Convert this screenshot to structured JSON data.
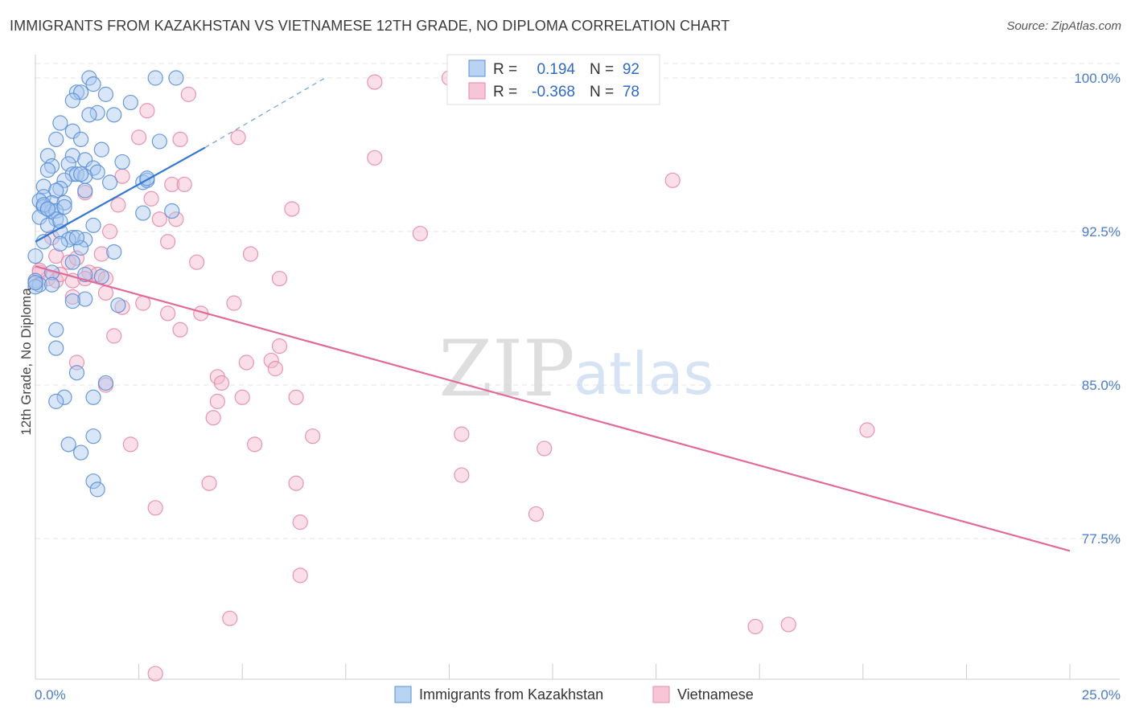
{
  "title": "IMMIGRANTS FROM KAZAKHSTAN VS VIETNAMESE 12TH GRADE, NO DIPLOMA CORRELATION CHART",
  "source": "Source: ZipAtlas.com",
  "colors": {
    "blue_fill": "#a8c8f0",
    "blue_stroke": "#5b8fd6",
    "blue_line": "#3476d2",
    "pink_fill": "#f5b8cc",
    "pink_stroke": "#e58aa8",
    "pink_line": "#e06a98",
    "tick_color": "#4a7cc7",
    "grid": "#e4e4e4"
  },
  "legend_top": {
    "rows": [
      {
        "r_label": "R =",
        "r_value": "0.194",
        "n_label": "N =",
        "n_value": "92"
      },
      {
        "r_label": "R =",
        "r_value": "-0.368",
        "n_label": "N =",
        "n_value": "78"
      }
    ]
  },
  "legend_bottom": {
    "series1": "Immigrants from Kazakhstan",
    "series2": "Vietnamese"
  },
  "watermark": {
    "zip": "ZIP",
    "atlas": "atlas"
  },
  "chart_data": {
    "type": "scatter",
    "title": "IMMIGRANTS FROM KAZAKHSTAN VS VIETNAMESE 12TH GRADE, NO DIPLOMA CORRELATION CHART",
    "xlabel": "",
    "ylabel": "12th Grade, No Diploma",
    "xlim": [
      0,
      25
    ],
    "ylim": [
      70.8,
      101.5
    ],
    "x_tick_labels": [
      {
        "value": 0,
        "label": "0.0%"
      },
      {
        "value": 25,
        "label": "25.0%"
      }
    ],
    "y_tick_labels": [
      {
        "value": 100,
        "label": "100.0%"
      },
      {
        "value": 92.5,
        "label": "92.5%"
      },
      {
        "value": 85,
        "label": "85.0%"
      },
      {
        "value": 77.5,
        "label": "77.5%"
      }
    ],
    "series": [
      {
        "name": "Immigrants from Kazakhstan",
        "color": "blue",
        "r": 0.194,
        "n": 92,
        "trend": {
          "x0": 0,
          "y0": 92.0,
          "x1": 4.1,
          "y1": 96.6,
          "dash_to_x": 7.0,
          "dash_to_y": 100.0
        },
        "points": [
          [
            1.3,
            100.0
          ],
          [
            1.4,
            99.7
          ],
          [
            2.9,
            100.0
          ],
          [
            3.4,
            100.0
          ],
          [
            1.0,
            99.3
          ],
          [
            1.1,
            99.3
          ],
          [
            1.7,
            99.2
          ],
          [
            0.9,
            98.9
          ],
          [
            2.3,
            98.8
          ],
          [
            1.5,
            98.3
          ],
          [
            1.3,
            98.2
          ],
          [
            0.6,
            97.8
          ],
          [
            1.9,
            98.2
          ],
          [
            0.9,
            97.4
          ],
          [
            0.5,
            97.0
          ],
          [
            1.1,
            97.0
          ],
          [
            3.0,
            96.9
          ],
          [
            1.6,
            96.5
          ],
          [
            0.3,
            96.2
          ],
          [
            0.9,
            96.2
          ],
          [
            1.2,
            96.0
          ],
          [
            2.1,
            95.9
          ],
          [
            0.8,
            95.8
          ],
          [
            0.4,
            95.7
          ],
          [
            1.4,
            95.6
          ],
          [
            0.3,
            95.5
          ],
          [
            1.5,
            95.4
          ],
          [
            0.9,
            95.3
          ],
          [
            1.0,
            95.3
          ],
          [
            1.2,
            95.2
          ],
          [
            0.7,
            95.0
          ],
          [
            1.8,
            94.9
          ],
          [
            2.6,
            94.9
          ],
          [
            2.7,
            95.0
          ],
          [
            0.2,
            94.7
          ],
          [
            0.6,
            94.6
          ],
          [
            0.5,
            94.5
          ],
          [
            1.2,
            94.5
          ],
          [
            0.2,
            94.2
          ],
          [
            0.1,
            94.0
          ],
          [
            0.4,
            93.9
          ],
          [
            0.7,
            93.9
          ],
          [
            0.2,
            93.7
          ],
          [
            0.3,
            93.6
          ],
          [
            0.4,
            93.5
          ],
          [
            0.5,
            93.5
          ],
          [
            3.3,
            93.5
          ],
          [
            2.6,
            93.4
          ],
          [
            0.1,
            93.2
          ],
          [
            0.5,
            93.1
          ],
          [
            0.3,
            92.8
          ],
          [
            1.4,
            92.8
          ],
          [
            0.6,
            92.5
          ],
          [
            0.9,
            92.2
          ],
          [
            0.8,
            92.1
          ],
          [
            0.2,
            92.0
          ],
          [
            1.2,
            92.1
          ],
          [
            1.1,
            91.7
          ],
          [
            1.9,
            91.5
          ],
          [
            0.6,
            91.9
          ],
          [
            0.0,
            91.3
          ],
          [
            0.9,
            91.0
          ],
          [
            0.4,
            90.5
          ],
          [
            1.2,
            90.4
          ],
          [
            1.6,
            90.3
          ],
          [
            0.0,
            90.1
          ],
          [
            0.1,
            89.9
          ],
          [
            0.4,
            89.9
          ],
          [
            0.0,
            89.8
          ],
          [
            1.2,
            89.2
          ],
          [
            0.9,
            89.1
          ],
          [
            2.0,
            88.9
          ],
          [
            0.5,
            87.7
          ],
          [
            0.5,
            86.8
          ],
          [
            1.0,
            85.6
          ],
          [
            1.7,
            85.1
          ],
          [
            0.7,
            84.4
          ],
          [
            1.4,
            84.4
          ],
          [
            0.5,
            84.2
          ],
          [
            1.4,
            82.5
          ],
          [
            0.8,
            82.1
          ],
          [
            1.1,
            81.7
          ],
          [
            1.4,
            80.3
          ],
          [
            1.5,
            79.9
          ],
          [
            0.0,
            90.0
          ],
          [
            0.2,
            93.8
          ],
          [
            0.6,
            93.0
          ],
          [
            1.0,
            92.2
          ],
          [
            0.3,
            93.6
          ],
          [
            0.7,
            93.7
          ],
          [
            1.1,
            95.3
          ],
          [
            2.7,
            95.1
          ]
        ]
      },
      {
        "name": "Vietnamese",
        "color": "pink",
        "r": -0.368,
        "n": 78,
        "trend": {
          "x0": 0,
          "y0": 90.8,
          "x1": 25,
          "y1": 76.9
        },
        "points": [
          [
            10.0,
            100.0
          ],
          [
            8.2,
            99.8
          ],
          [
            3.7,
            99.2
          ],
          [
            2.7,
            98.4
          ],
          [
            2.5,
            97.1
          ],
          [
            3.5,
            97.0
          ],
          [
            4.9,
            97.1
          ],
          [
            8.2,
            96.1
          ],
          [
            15.4,
            95.0
          ],
          [
            2.1,
            95.2
          ],
          [
            3.3,
            94.8
          ],
          [
            3.6,
            94.8
          ],
          [
            2.0,
            93.8
          ],
          [
            2.8,
            94.1
          ],
          [
            1.2,
            94.4
          ],
          [
            6.2,
            93.6
          ],
          [
            3.0,
            93.1
          ],
          [
            3.4,
            93.1
          ],
          [
            0.4,
            92.2
          ],
          [
            1.8,
            92.5
          ],
          [
            9.3,
            92.4
          ],
          [
            3.2,
            92.0
          ],
          [
            0.5,
            91.3
          ],
          [
            1.6,
            91.4
          ],
          [
            5.2,
            91.4
          ],
          [
            3.9,
            91.0
          ],
          [
            0.1,
            90.5
          ],
          [
            0.3,
            90.2
          ],
          [
            0.9,
            90.1
          ],
          [
            1.3,
            90.5
          ],
          [
            1.5,
            90.4
          ],
          [
            0.0,
            90.0
          ],
          [
            0.5,
            90.1
          ],
          [
            1.7,
            90.2
          ],
          [
            5.9,
            90.2
          ],
          [
            1.7,
            89.5
          ],
          [
            0.9,
            89.3
          ],
          [
            2.6,
            89.0
          ],
          [
            4.8,
            89.0
          ],
          [
            2.1,
            88.8
          ],
          [
            3.2,
            88.5
          ],
          [
            4.0,
            88.5
          ],
          [
            3.5,
            87.7
          ],
          [
            1.9,
            87.4
          ],
          [
            5.9,
            86.9
          ],
          [
            1.0,
            86.1
          ],
          [
            5.1,
            86.1
          ],
          [
            5.7,
            86.2
          ],
          [
            5.8,
            85.8
          ],
          [
            4.4,
            85.4
          ],
          [
            4.5,
            85.1
          ],
          [
            1.7,
            85.0
          ],
          [
            6.3,
            84.4
          ],
          [
            5.0,
            84.4
          ],
          [
            4.4,
            84.2
          ],
          [
            4.3,
            83.4
          ],
          [
            10.3,
            82.6
          ],
          [
            6.7,
            82.5
          ],
          [
            12.3,
            81.9
          ],
          [
            2.3,
            82.1
          ],
          [
            5.3,
            82.1
          ],
          [
            20.1,
            82.8
          ],
          [
            10.3,
            80.6
          ],
          [
            4.2,
            80.2
          ],
          [
            6.3,
            80.2
          ],
          [
            2.9,
            79.0
          ],
          [
            12.1,
            78.7
          ],
          [
            6.4,
            78.3
          ],
          [
            6.4,
            75.7
          ],
          [
            4.7,
            73.6
          ],
          [
            17.4,
            73.2
          ],
          [
            18.2,
            73.3
          ],
          [
            2.9,
            70.9
          ],
          [
            0.1,
            90.6
          ],
          [
            0.8,
            91.0
          ],
          [
            1.0,
            91.2
          ],
          [
            1.2,
            90.2
          ],
          [
            0.6,
            90.4
          ]
        ]
      }
    ]
  }
}
